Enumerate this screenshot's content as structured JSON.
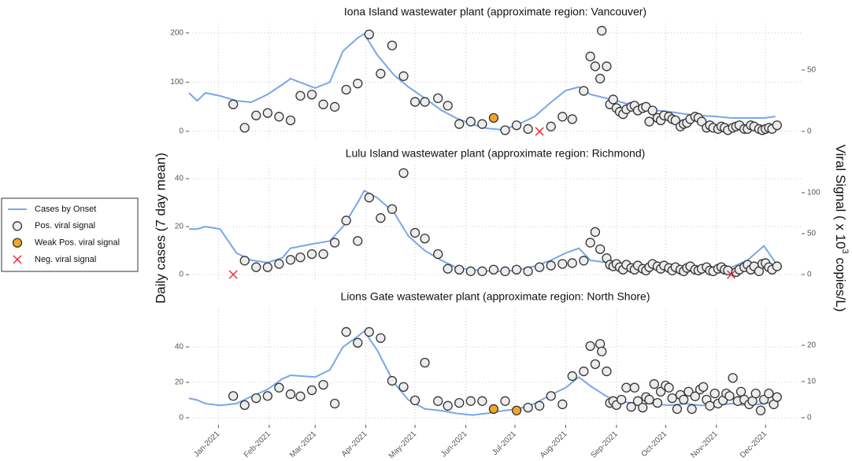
{
  "axis_labels": {
    "y_label": "Daily cases (7 day mean)",
    "y2_label": [
      "Viral Signal ( x 10",
      "3",
      " copies/L)"
    ]
  },
  "legend": {
    "position": "left",
    "items": [
      {
        "label": "Cases by Onset",
        "type": "line",
        "color": "#7aa6e8"
      },
      {
        "label": "Pos. viral signal",
        "type": "scatter",
        "marker": "circle",
        "color": "#ececec"
      },
      {
        "label": "Weak Pos. viral signal",
        "type": "scatter",
        "marker": "circle",
        "color": "#f5a623"
      },
      {
        "label": "Neg. viral signal",
        "type": "scatter",
        "marker": "x",
        "color": "#e8303a"
      }
    ]
  },
  "chart_data": [
    {
      "type": "line",
      "title": "Iona Island wastewater plant (approximate region: Vancouver)",
      "grid": true,
      "xlim": [
        -18,
        356
      ],
      "xticks": [
        0,
        31,
        59,
        90,
        120,
        151,
        181,
        212,
        243,
        273,
        304,
        334
      ],
      "ylim": [
        -13,
        219
      ],
      "yticks": [
        0,
        100,
        200
      ],
      "y2lim": [
        -5.1,
        87.8
      ],
      "y2ticks": [
        0,
        50
      ],
      "series": [
        {
          "type": "line",
          "color": "#7aa6e8",
          "x": [
            -18,
            -13,
            -8,
            1,
            11,
            20,
            30,
            39,
            44,
            59,
            68,
            76,
            85,
            89,
            97,
            107,
            116,
            126,
            136,
            145,
            155,
            164,
            174,
            183,
            193,
            203,
            212,
            220,
            227,
            237,
            246,
            256,
            265,
            275,
            285,
            294,
            304,
            313,
            323,
            333,
            340
          ],
          "values": [
            78,
            62,
            78,
            72,
            62,
            59,
            75,
            95,
            107,
            88,
            100,
            163,
            190,
            198,
            155,
            115,
            90,
            67,
            43,
            27,
            14,
            6,
            3,
            14,
            30,
            59,
            83,
            90,
            75,
            67,
            59,
            51,
            43,
            40,
            35,
            32,
            30,
            27,
            27,
            27,
            30
          ]
        },
        {
          "type": "scatter",
          "marker": "circle",
          "color": "#ececec",
          "axis": "y2",
          "x": [
            9,
            16,
            23,
            30,
            37,
            44,
            50,
            57,
            64,
            71,
            78,
            85,
            92,
            99,
            106,
            113,
            120,
            126,
            134,
            140,
            147,
            154,
            161,
            175,
            182,
            189,
            203,
            210,
            216,
            223,
            227,
            230,
            233,
            234,
            237,
            239,
            241,
            243,
            245,
            247,
            249,
            252,
            254,
            256,
            259,
            261,
            263,
            265,
            268,
            270,
            272,
            275,
            277,
            279,
            282,
            284,
            286,
            288,
            291,
            293,
            295,
            298,
            300,
            302,
            305,
            307,
            309,
            311,
            314,
            316,
            318,
            321,
            323,
            325,
            327,
            330,
            332,
            334,
            336,
            338,
            341
          ],
          "values": [
            22,
            3,
            13,
            15,
            12,
            9,
            29,
            30,
            22,
            20,
            34,
            39,
            79,
            47,
            70,
            45,
            24,
            24,
            27,
            21,
            6,
            8,
            6,
            1,
            5,
            2,
            4,
            12,
            10,
            33,
            61,
            53,
            43,
            82,
            53,
            22,
            26,
            19,
            16,
            14,
            18,
            20,
            21,
            17,
            19,
            20,
            8,
            17,
            11,
            9,
            13,
            12,
            10,
            9,
            4,
            6,
            7,
            10,
            12,
            11,
            8,
            3,
            5,
            3,
            2,
            4,
            3,
            1,
            3,
            4,
            5,
            2,
            2,
            5,
            4,
            2,
            1,
            2,
            3,
            2,
            5
          ]
        },
        {
          "type": "scatter",
          "marker": "circle",
          "color": "#f5a623",
          "axis": "y2",
          "x": [
            168
          ],
          "values": [
            11
          ]
        },
        {
          "type": "scatter",
          "marker": "x",
          "color": "#e8303a",
          "axis": "y2",
          "x": [
            196
          ],
          "values": [
            0
          ]
        }
      ]
    },
    {
      "type": "line",
      "title": "Lulu Island wastewater plant (approximate region: Richmond)",
      "grid": true,
      "xlim": [
        -18,
        356
      ],
      "xticks": [
        0,
        31,
        59,
        90,
        120,
        151,
        181,
        212,
        243,
        273,
        304,
        334
      ],
      "ylim": [
        -2.6,
        45.6
      ],
      "yticks": [
        0,
        20,
        40
      ],
      "y2lim": [
        -7.7,
        133.6
      ],
      "y2ticks": [
        0,
        50,
        100
      ],
      "series": [
        {
          "type": "line",
          "color": "#7aa6e8",
          "x": [
            -18,
            -13,
            -8,
            1,
            11,
            20,
            30,
            39,
            44,
            59,
            68,
            76,
            85,
            89,
            97,
            107,
            116,
            126,
            136,
            145,
            155,
            164,
            174,
            183,
            193,
            203,
            212,
            220,
            227,
            237,
            246,
            256,
            265,
            275,
            285,
            294,
            304,
            313,
            323,
            333,
            340
          ],
          "values": [
            19,
            19,
            20,
            19,
            9,
            6,
            5,
            7,
            11,
            13,
            14,
            20,
            30,
            35,
            32,
            26,
            16,
            10,
            6,
            3,
            2,
            1.5,
            1.3,
            2,
            3.5,
            6,
            9,
            11,
            6,
            5,
            4,
            4.5,
            3,
            3.5,
            3,
            3,
            2.5,
            3,
            6,
            12,
            5
          ]
        },
        {
          "type": "scatter",
          "marker": "circle",
          "color": "#ececec",
          "axis": "y2",
          "x": [
            16,
            23,
            30,
            37,
            44,
            50,
            57,
            64,
            71,
            78,
            85,
            92,
            99,
            106,
            113,
            120,
            126,
            134,
            140,
            147,
            154,
            161,
            168,
            175,
            182,
            189,
            196,
            203,
            210,
            216,
            223,
            227,
            230,
            233,
            237,
            239,
            241,
            243,
            245,
            247,
            249,
            252,
            254,
            256,
            259,
            261,
            263,
            265,
            268,
            270,
            272,
            275,
            277,
            279,
            282,
            284,
            286,
            288,
            291,
            293,
            295,
            298,
            300,
            302,
            305,
            307,
            309,
            311,
            316,
            318,
            321,
            323,
            325,
            327,
            330,
            332,
            334,
            336,
            338,
            341
          ],
          "values": [
            17,
            9,
            9,
            13,
            18,
            21,
            25,
            25,
            39,
            66,
            41,
            94,
            69,
            80,
            124,
            51,
            44,
            25,
            7,
            6,
            4,
            4,
            6,
            4,
            6,
            4,
            9,
            11,
            13,
            14,
            17,
            39,
            52,
            31,
            20,
            12,
            10,
            13,
            9,
            6,
            12,
            8,
            6,
            11,
            7,
            5,
            9,
            13,
            10,
            7,
            11,
            8,
            5,
            9,
            6,
            4,
            8,
            10,
            6,
            5,
            7,
            9,
            5,
            4,
            7,
            9,
            6,
            5,
            3,
            6,
            9,
            12,
            6,
            10,
            4,
            13,
            14,
            9,
            6,
            10
          ]
        },
        {
          "type": "scatter",
          "marker": "x",
          "color": "#e8303a",
          "axis": "y2",
          "x": [
            9,
            313
          ],
          "values": [
            0,
            0
          ]
        }
      ]
    },
    {
      "type": "line",
      "title": "Lions Gate wastewater plant (approximate region: North Shore)",
      "grid": true,
      "xlim": [
        -18,
        356
      ],
      "xticks": [
        {
          "value": 0,
          "label": "Jan-2021"
        },
        {
          "value": 31,
          "label": "Feb-2021"
        },
        {
          "value": 59,
          "label": "Mar-2021"
        },
        {
          "value": 90,
          "label": "Apr-2021"
        },
        {
          "value": 120,
          "label": "May-2021"
        },
        {
          "value": 151,
          "label": "Jun-2021"
        },
        {
          "value": 181,
          "label": "Jul-2021"
        },
        {
          "value": 212,
          "label": "Aug-2021"
        },
        {
          "value": 243,
          "label": "Sep-2021"
        },
        {
          "value": 273,
          "label": "Oct-2021"
        },
        {
          "value": 304,
          "label": "Nov-2021"
        },
        {
          "value": 334,
          "label": "Dec-2021"
        }
      ],
      "ylim": [
        -4,
        61.8
      ],
      "yticks": [
        0,
        20,
        40
      ],
      "y2lim": [
        -1.96,
        30.2
      ],
      "y2ticks": [
        0,
        10,
        20
      ],
      "series": [
        {
          "type": "line",
          "color": "#7aa6e8",
          "x": [
            -18,
            -13,
            -8,
            1,
            11,
            20,
            30,
            39,
            44,
            59,
            68,
            76,
            85,
            89,
            97,
            107,
            116,
            126,
            136,
            145,
            155,
            164,
            174,
            183,
            193,
            203,
            212,
            220,
            227,
            237,
            246,
            256,
            265,
            275,
            285,
            294,
            304,
            313,
            323,
            333,
            340
          ],
          "values": [
            11,
            10,
            8,
            7,
            8,
            12,
            16,
            22,
            24,
            23,
            27,
            40,
            46,
            49,
            38,
            20,
            10,
            5,
            4,
            2.5,
            1.5,
            2.5,
            4,
            5,
            8,
            13,
            17,
            23,
            18,
            12,
            9,
            8,
            8,
            7,
            8,
            7,
            7,
            8,
            7,
            8,
            9
          ]
        },
        {
          "type": "scatter",
          "marker": "circle",
          "color": "#ececec",
          "axis": "y2",
          "x": [
            9,
            16,
            23,
            30,
            37,
            44,
            50,
            57,
            64,
            71,
            78,
            85,
            92,
            99,
            106,
            113,
            120,
            126,
            134,
            140,
            147,
            154,
            161,
            175,
            189,
            196,
            203,
            210,
            216,
            223,
            227,
            230,
            233,
            234,
            237,
            239,
            241,
            243,
            246,
            249,
            252,
            254,
            256,
            259,
            261,
            263,
            266,
            268,
            270,
            273,
            275,
            277,
            280,
            282,
            284,
            287,
            289,
            291,
            294,
            296,
            298,
            300,
            303,
            305,
            308,
            310,
            312,
            314,
            317,
            319,
            321,
            324,
            326,
            328,
            331,
            333,
            336,
            339,
            341
          ],
          "values": [
            6,
            3.5,
            5.4,
            6,
            8.3,
            6.5,
            5.9,
            7.6,
            9.1,
            3.9,
            23.7,
            20.7,
            23.7,
            22,
            10.2,
            8.5,
            4.8,
            15.2,
            4.6,
            3.3,
            4.1,
            4.6,
            4.6,
            4.6,
            2.8,
            3.3,
            6,
            3.7,
            11.5,
            12.8,
            19.8,
            14.8,
            20.4,
            18.3,
            12.8,
            4.1,
            4.6,
            3.5,
            5,
            8.3,
            3,
            8.3,
            4.6,
            2.8,
            5.7,
            5,
            9.3,
            4.1,
            7.2,
            8.9,
            8.3,
            5.4,
            2.4,
            6.3,
            5,
            7.2,
            2.4,
            5.9,
            7.8,
            8.5,
            5,
            3.3,
            6.7,
            3.9,
            4.8,
            6.7,
            6,
            11,
            4.6,
            7.2,
            5,
            3.7,
            4.6,
            6.7,
            2,
            5,
            6.7,
            3.7,
            5.7
          ]
        },
        {
          "type": "scatter",
          "marker": "circle",
          "color": "#f5a623",
          "axis": "y2",
          "x": [
            168,
            182
          ],
          "values": [
            2.4,
            2
          ]
        }
      ]
    }
  ]
}
